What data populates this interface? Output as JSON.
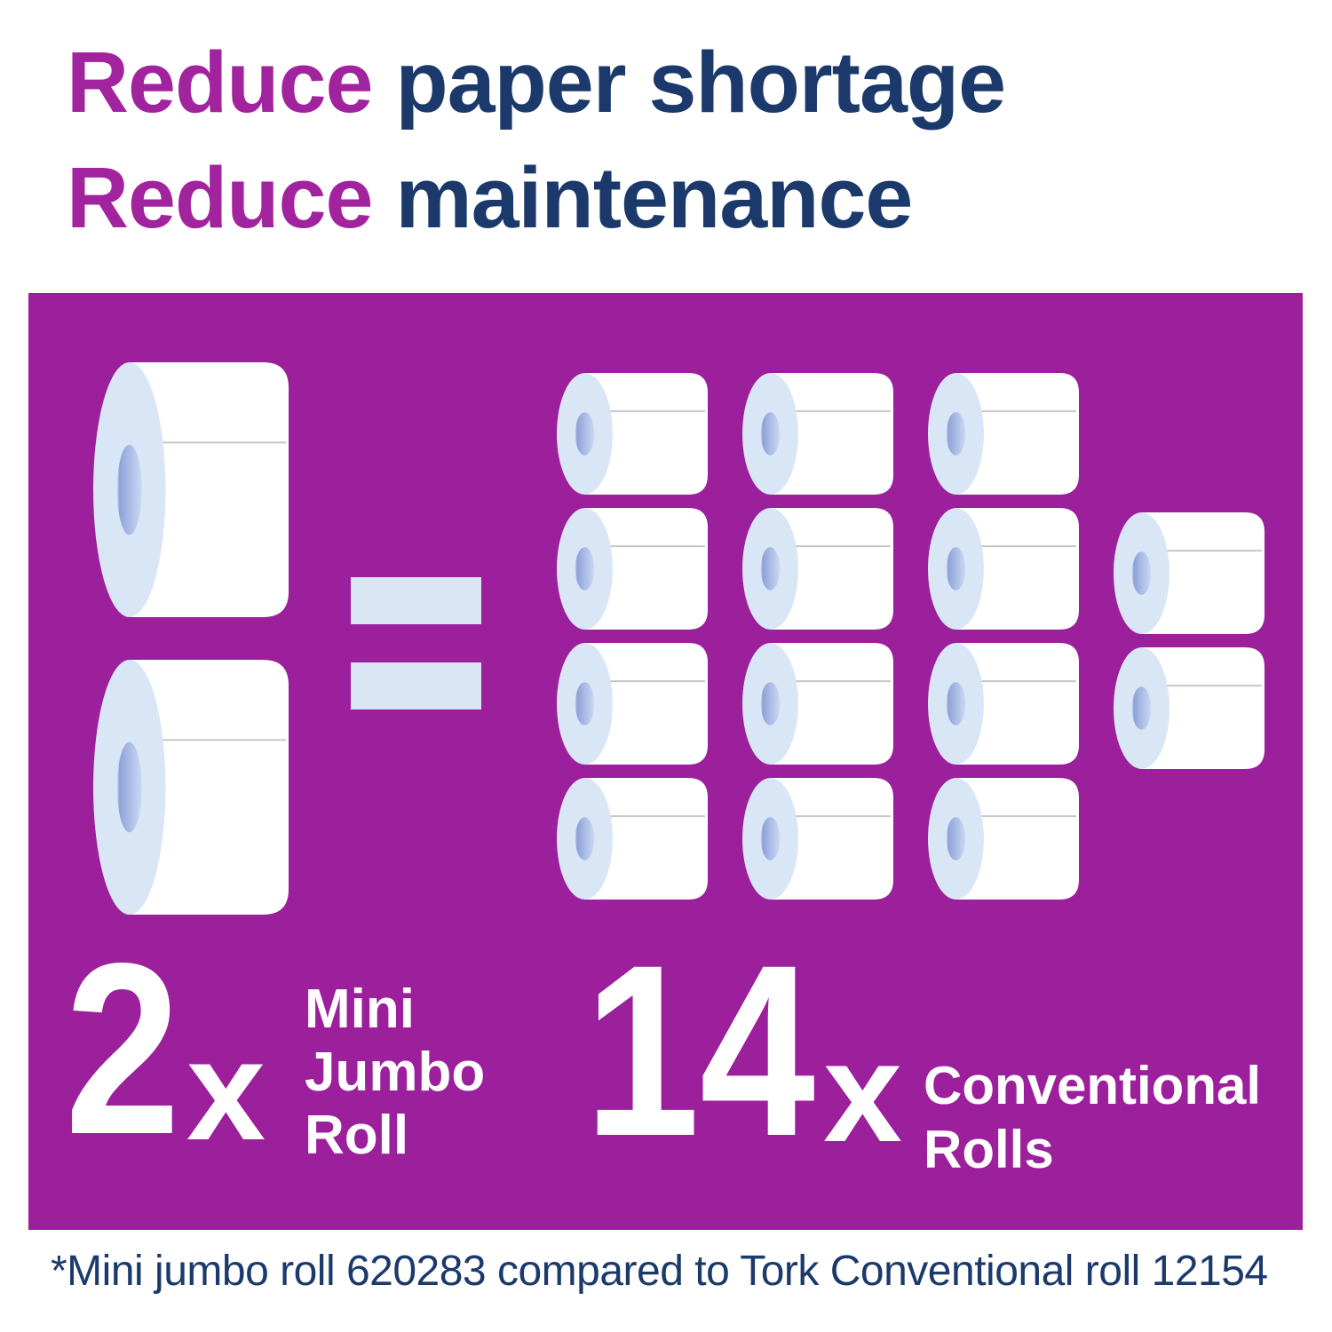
{
  "heading": {
    "line1": {
      "highlight": "Reduce",
      "rest": " paper shortage"
    },
    "line2": {
      "highlight": "Reduce",
      "rest": " maintenance"
    }
  },
  "comparison": {
    "left": {
      "count": "2",
      "multiplier": "x",
      "roll_count": 2,
      "label_lines": [
        "Mini",
        "Jumbo",
        "Roll"
      ]
    },
    "right": {
      "count": "14",
      "multiplier": "x",
      "roll_count": 14,
      "label_lines": [
        "Conventional",
        "Rolls"
      ]
    },
    "equals_symbol": "="
  },
  "footnote": "*Mini jumbo roll 620283 compared to Tork Conventional roll 12154",
  "icons": {
    "big_roll": "mini-jumbo-roll-icon",
    "small_roll": "conventional-roll-icon",
    "equals": "equals-sign"
  },
  "colors": {
    "accent_purple": "#A2239E",
    "panel_purple": "#9C1F9C",
    "navy": "#1B3A6B",
    "roll_face": "#D9E6F5",
    "roll_body": "#FFFFFF",
    "roll_seam": "#C4C6CB",
    "equals_blue": "#D8E5F3",
    "core_edge_light": "#CBD7F1",
    "core_dark": "#8CA2D6",
    "core_mid": "#A6B8E4",
    "core_light": "#CAD8F2"
  }
}
